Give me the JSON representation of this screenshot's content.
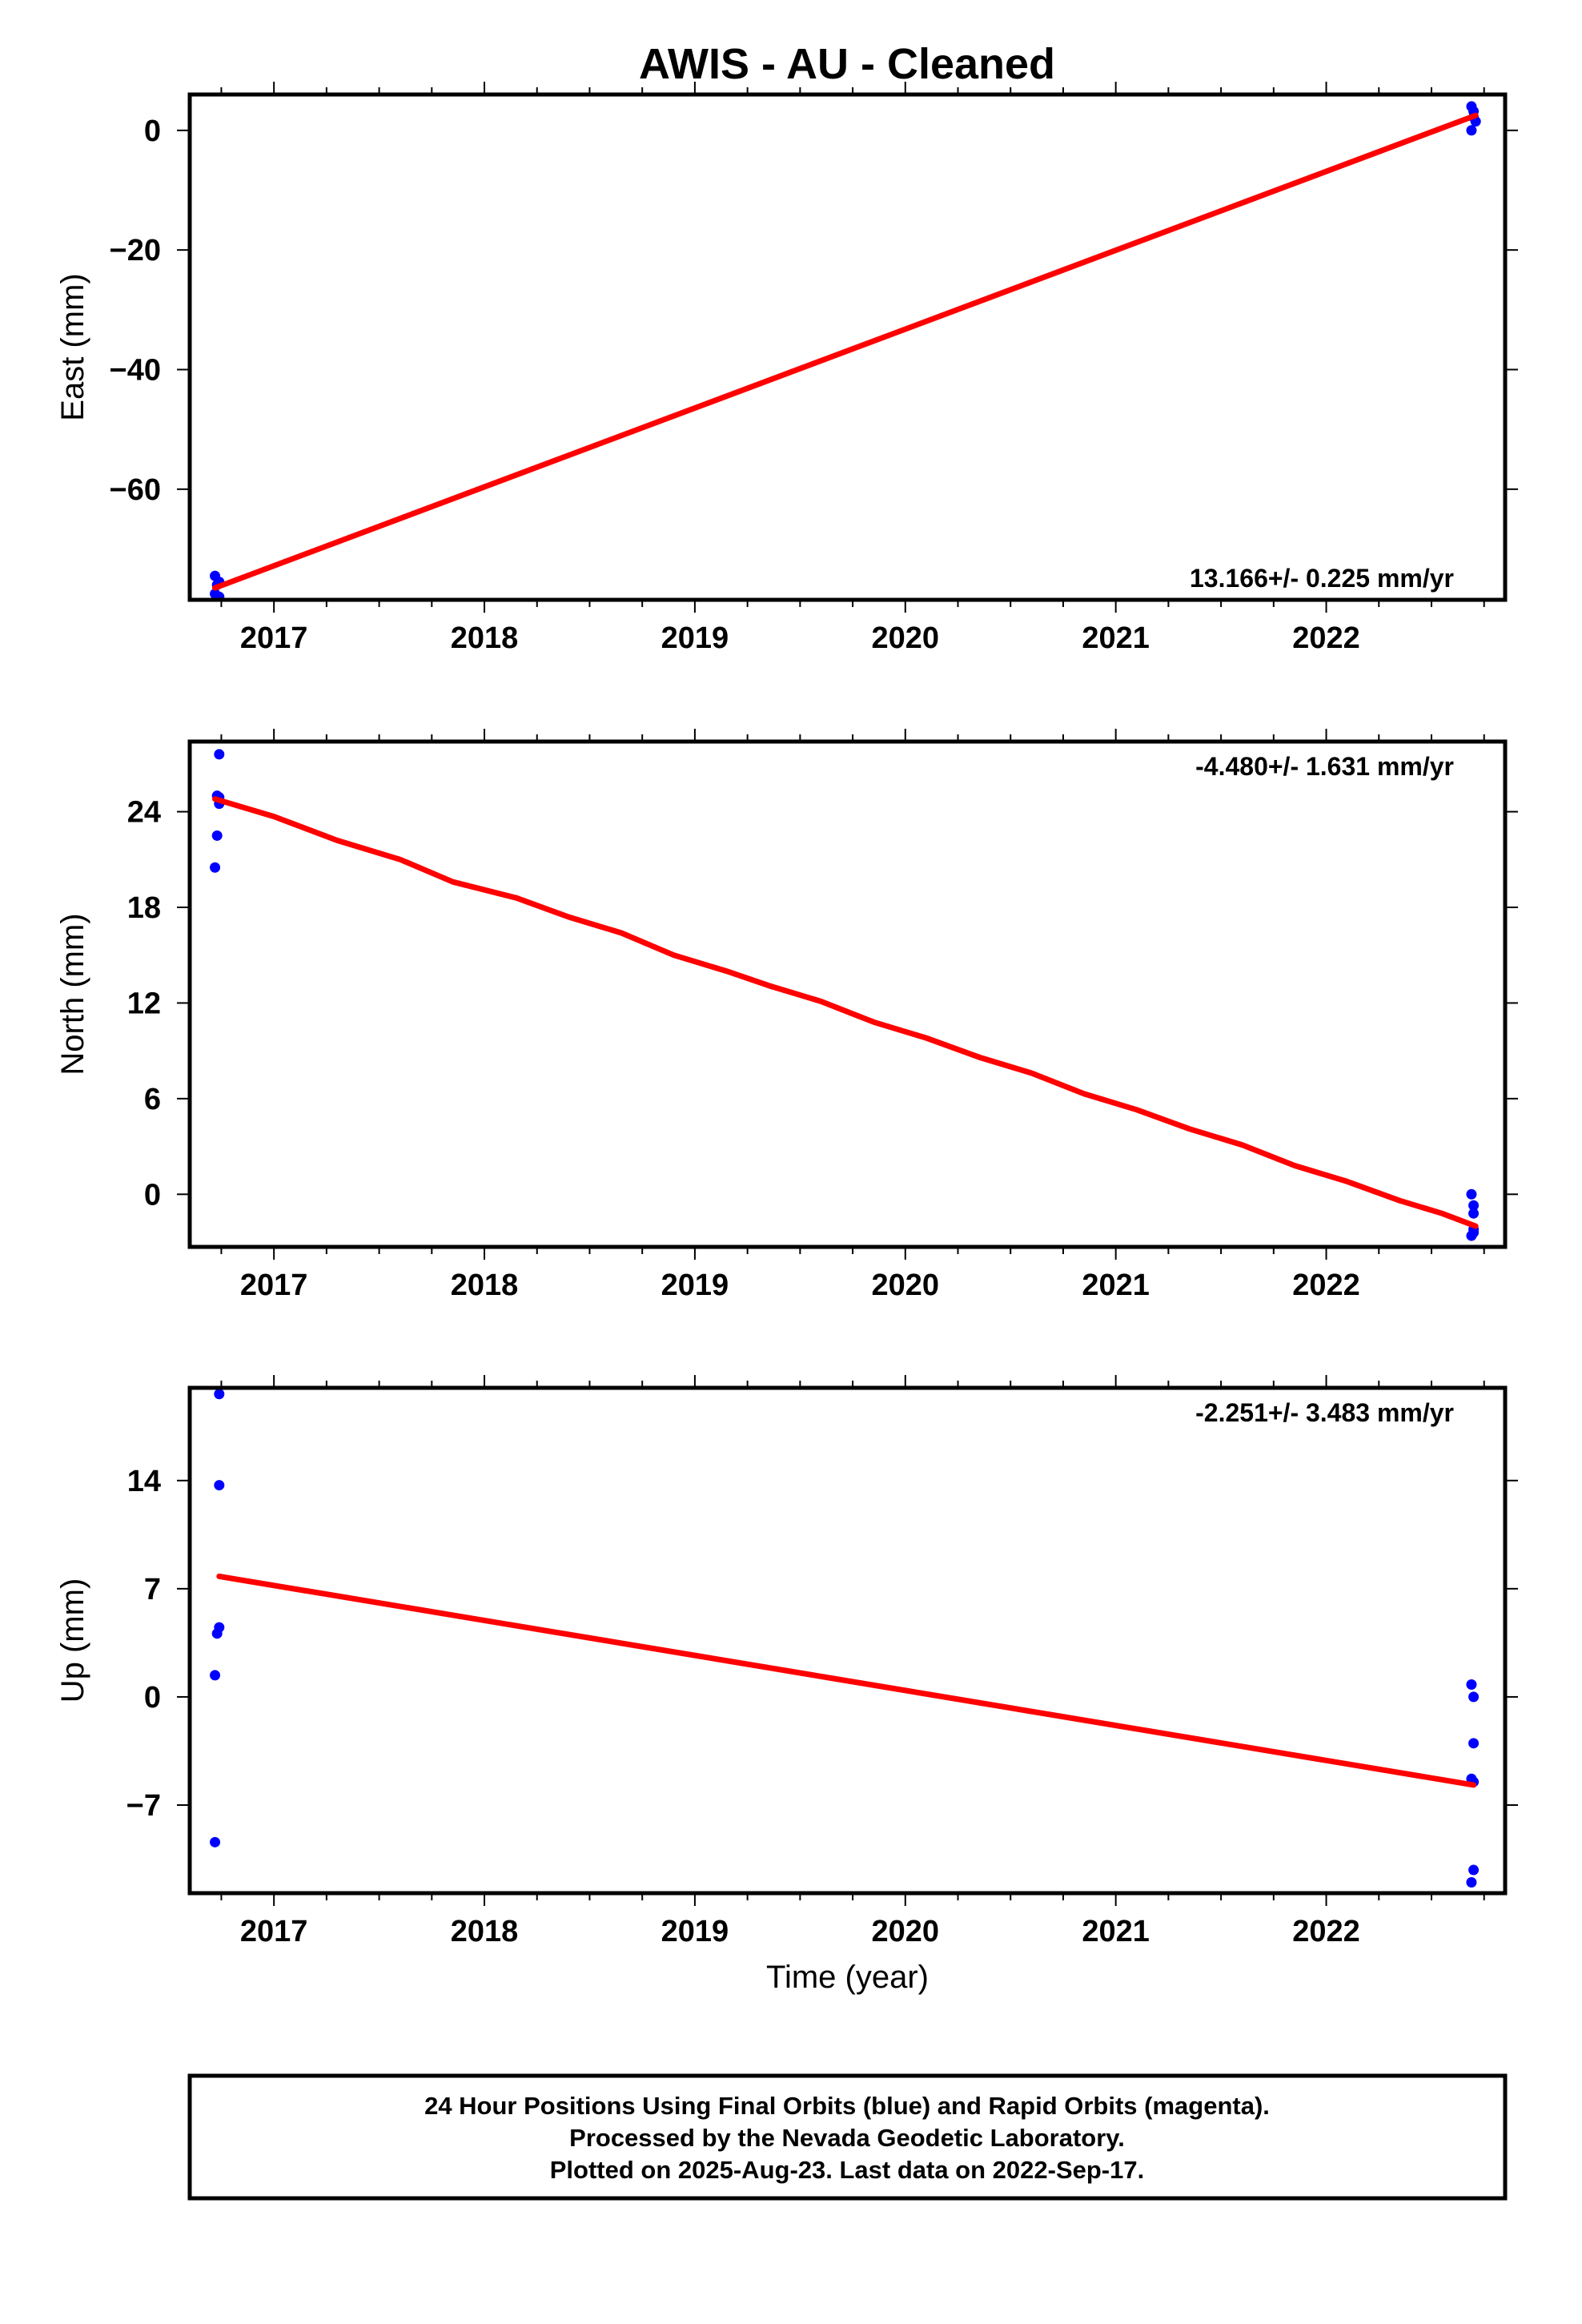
{
  "title": "AWIS  - AU - Cleaned",
  "colors": {
    "data_points": "#0000ff",
    "trend_line": "#ff0000",
    "frame": "#000000"
  },
  "chart_data": [
    {
      "type": "scatter",
      "panel": "east",
      "ylabel": "East (mm)",
      "xlabel": "",
      "rate_text": "13.166+/- 0.225 mm/yr",
      "rate_position": "bottom-right",
      "xlim": [
        2016.6,
        2022.85
      ],
      "ylim": [
        -78.5,
        6
      ],
      "xticks": [
        2017,
        2018,
        2019,
        2020,
        2021,
        2022
      ],
      "yticks": [
        0,
        -20,
        -40,
        -60
      ],
      "points": [
        {
          "x": 2016.72,
          "y": -74.5
        },
        {
          "x": 2016.73,
          "y": -76.0
        },
        {
          "x": 2016.72,
          "y": -77.5
        },
        {
          "x": 2016.74,
          "y": -78.0
        },
        {
          "x": 2016.74,
          "y": -75.5
        },
        {
          "x": 2022.69,
          "y": 4.0
        },
        {
          "x": 2022.7,
          "y": 3.2
        },
        {
          "x": 2022.7,
          "y": 2.2
        },
        {
          "x": 2022.71,
          "y": 1.5
        },
        {
          "x": 2022.69,
          "y": 0.0
        }
      ],
      "trend": [
        {
          "x": 2016.72,
          "y": -76.5
        },
        {
          "x": 2022.71,
          "y": 2.5
        }
      ]
    },
    {
      "type": "scatter",
      "panel": "north",
      "ylabel": "North (mm)",
      "xlabel": "",
      "rate_text": "-4.480+/- 1.631 mm/yr",
      "rate_position": "top-right",
      "xlim": [
        2016.6,
        2022.85
      ],
      "ylim": [
        -3.3,
        28.4
      ],
      "xticks": [
        2017,
        2018,
        2019,
        2020,
        2021,
        2022
      ],
      "yticks": [
        24,
        18,
        12,
        6,
        0
      ],
      "points": [
        {
          "x": 2016.74,
          "y": 27.6
        },
        {
          "x": 2016.73,
          "y": 25.0
        },
        {
          "x": 2016.74,
          "y": 24.9
        },
        {
          "x": 2016.74,
          "y": 24.5
        },
        {
          "x": 2016.73,
          "y": 22.5
        },
        {
          "x": 2016.72,
          "y": 20.5
        },
        {
          "x": 2022.69,
          "y": 0.0
        },
        {
          "x": 2022.7,
          "y": -0.7
        },
        {
          "x": 2022.7,
          "y": -1.2
        },
        {
          "x": 2022.7,
          "y": -2.2
        },
        {
          "x": 2022.69,
          "y": -2.6
        },
        {
          "x": 2022.7,
          "y": -2.4
        }
      ],
      "trend": [
        {
          "x": 2016.72,
          "y": 24.8
        },
        {
          "x": 2017.0,
          "y": 23.7
        },
        {
          "x": 2017.3,
          "y": 22.2
        },
        {
          "x": 2017.6,
          "y": 21.0
        },
        {
          "x": 2017.85,
          "y": 19.6
        },
        {
          "x": 2018.15,
          "y": 18.6
        },
        {
          "x": 2018.4,
          "y": 17.4
        },
        {
          "x": 2018.65,
          "y": 16.4
        },
        {
          "x": 2018.9,
          "y": 15.0
        },
        {
          "x": 2019.15,
          "y": 14.0
        },
        {
          "x": 2019.35,
          "y": 13.1
        },
        {
          "x": 2019.6,
          "y": 12.1
        },
        {
          "x": 2019.85,
          "y": 10.8
        },
        {
          "x": 2020.1,
          "y": 9.8
        },
        {
          "x": 2020.35,
          "y": 8.6
        },
        {
          "x": 2020.6,
          "y": 7.6
        },
        {
          "x": 2020.85,
          "y": 6.3
        },
        {
          "x": 2021.1,
          "y": 5.3
        },
        {
          "x": 2021.35,
          "y": 4.1
        },
        {
          "x": 2021.6,
          "y": 3.1
        },
        {
          "x": 2021.85,
          "y": 1.8
        },
        {
          "x": 2022.1,
          "y": 0.8
        },
        {
          "x": 2022.35,
          "y": -0.4
        },
        {
          "x": 2022.55,
          "y": -1.2
        },
        {
          "x": 2022.71,
          "y": -2.0
        }
      ]
    },
    {
      "type": "scatter",
      "panel": "up",
      "ylabel": "Up (mm)",
      "xlabel": "Time (year)",
      "rate_text": "-2.251+/- 3.483 mm/yr",
      "rate_position": "top-right",
      "xlim": [
        2016.6,
        2022.85
      ],
      "ylim": [
        -12.7,
        20.0
      ],
      "xticks": [
        2017,
        2018,
        2019,
        2020,
        2021,
        2022
      ],
      "yticks": [
        14,
        7,
        0,
        -7
      ],
      "points": [
        {
          "x": 2016.74,
          "y": 19.6
        },
        {
          "x": 2016.74,
          "y": 13.7
        },
        {
          "x": 2016.74,
          "y": 4.5
        },
        {
          "x": 2016.73,
          "y": 4.1
        },
        {
          "x": 2016.72,
          "y": 1.4
        },
        {
          "x": 2016.72,
          "y": -9.4
        },
        {
          "x": 2022.69,
          "y": 0.8
        },
        {
          "x": 2022.7,
          "y": 0.0
        },
        {
          "x": 2022.7,
          "y": -3.0
        },
        {
          "x": 2022.69,
          "y": -5.3
        },
        {
          "x": 2022.7,
          "y": -5.5
        },
        {
          "x": 2022.7,
          "y": -11.2
        },
        {
          "x": 2022.69,
          "y": -12.0
        }
      ],
      "trend": [
        {
          "x": 2016.74,
          "y": 7.8
        },
        {
          "x": 2022.7,
          "y": -5.7
        }
      ]
    }
  ],
  "footer": {
    "line1": "24 Hour Positions Using Final Orbits (blue) and Rapid Orbits (magenta).",
    "line2": "Processed by the Nevada Geodetic Laboratory.",
    "line3": "Plotted on 2025-Aug-23. Last data on 2022-Sep-17."
  }
}
